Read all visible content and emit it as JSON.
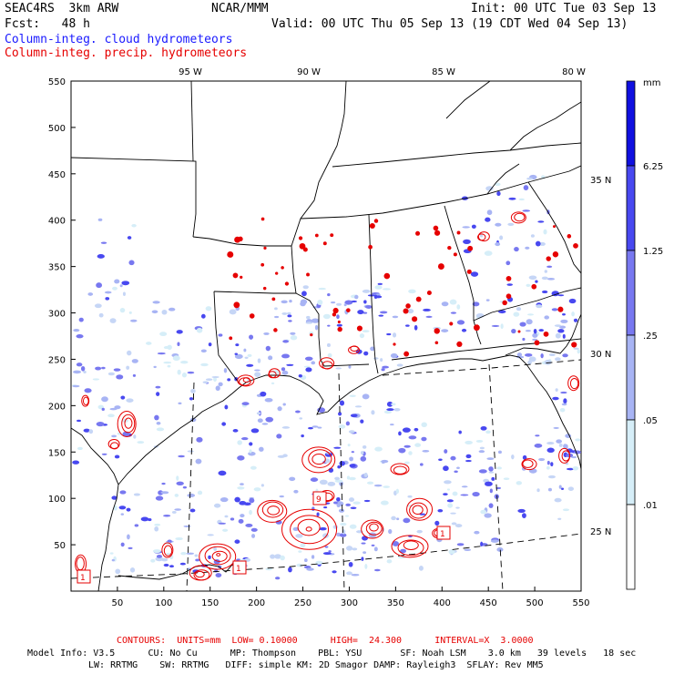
{
  "header": {
    "model": "SEAC4RS  3km ARW",
    "org": "NCAR/MMM",
    "init": "Init: 00 UTC Tue 03 Sep 13",
    "fcst": "Fcst:   48 h",
    "valid": "Valid: 00 UTC Thu 05 Sep 13 (19 CDT Wed 04 Sep 13)",
    "legend_blue": "Column-integ. cloud hydrometeors",
    "legend_red": "Column-integ. precip. hydrometeors"
  },
  "axes": {
    "x_ticks": [
      "50",
      "100",
      "150",
      "200",
      "250",
      "300",
      "350",
      "400",
      "450",
      "500",
      "550"
    ],
    "y_ticks": [
      "50",
      "100",
      "150",
      "200",
      "250",
      "300",
      "350",
      "400",
      "450",
      "500",
      "550"
    ],
    "lon_labels": [
      "95 W",
      "90 W",
      "85 W",
      "80 W"
    ],
    "lat_labels": [
      "35 N",
      "30 N",
      "25 N"
    ]
  },
  "colorbar": {
    "unit": "mm",
    "labels": [
      "6.25",
      "1.25",
      ".25",
      ".05",
      ".01"
    ],
    "colors": [
      "#1010e0",
      "#4848f0",
      "#7878f0",
      "#a8b4f4",
      "#d6eef8",
      "#ffffff"
    ]
  },
  "contour_info": {
    "contours": "CONTOURS:  UNITS=mm  LOW= 0.10000      HIGH=  24.300      INTERVAL=X  3.0000"
  },
  "footer": {
    "line1": "Model Info: V3.5      CU: No Cu      MP: Thompson    PBL: YSU       SF: Noah LSM    3.0 km   39 levels   18 sec",
    "line2": "LW: RRTMG    SW: RRTMG   DIFF: simple KM: 2D Smagor DAMP: Rayleigh3  SFLAY: Rev MM5"
  },
  "colors": {
    "cloud": "#5a5af0",
    "precip": "#e60000",
    "map_lines": "#000000"
  }
}
